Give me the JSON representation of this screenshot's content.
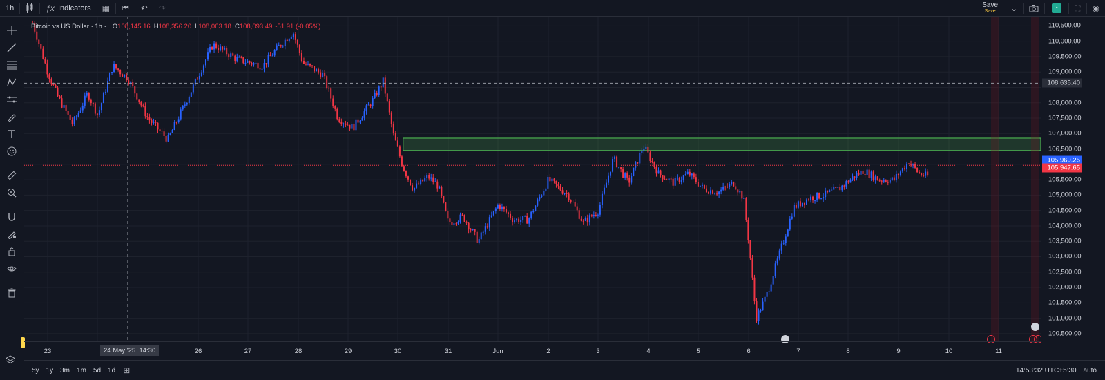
{
  "toolbar": {
    "interval": "1h",
    "indicators_label": "Indicators",
    "save_label": "Save",
    "save_sub": "Save"
  },
  "legend": {
    "symbol": "Bitcoin vs US Dollar · 1h ·",
    "open_label": "O",
    "open": "108,145.16",
    "high_label": "H",
    "high": "108,356.20",
    "low_label": "L",
    "low": "108,063.18",
    "close_label": "C",
    "close": "108,093.49",
    "change": "-51.91 (-0.05%)"
  },
  "price_axis": {
    "ticks": [
      "110,500.00",
      "110,000.00",
      "109,500.00",
      "109,000.00",
      "108,000.00",
      "107,500.00",
      "107,000.00",
      "106,500.00",
      "105,500.00",
      "105,000.00",
      "104,500.00",
      "104,000.00",
      "103,500.00",
      "103,000.00",
      "102,500.00",
      "102,000.00",
      "101,500.00",
      "101,000.00",
      "100,500.00"
    ],
    "crosshair_price": "108,635.40",
    "last_price": "105,969.25",
    "prev_close": "105,947.65"
  },
  "time_axis": {
    "ticks": [
      "23",
      "24",
      "26",
      "27",
      "28",
      "29",
      "30",
      "31",
      "Jun",
      "2",
      "3",
      "4",
      "5",
      "6",
      "7",
      "8",
      "9",
      "10",
      "11"
    ],
    "crosshair_date": "24 May '25",
    "crosshair_time": "14:30"
  },
  "bottom": {
    "ranges": [
      "5y",
      "1y",
      "3m",
      "1m",
      "5d",
      "1d"
    ],
    "clock": "14:53:32 UTC+5:30",
    "scale_mode": "auto"
  },
  "colors": {
    "background": "#131722",
    "up": "#2962ff",
    "down": "#f23645",
    "zone": "#4caf50",
    "grid": "#1e222d"
  },
  "chart_data": {
    "type": "candlestick",
    "symbol": "BTCUSD",
    "interval": "1h",
    "ylim": [
      100250,
      110800
    ],
    "x_labels": [
      "23",
      "24",
      "26",
      "27",
      "28",
      "29",
      "30",
      "31",
      "Jun",
      "2",
      "3",
      "4",
      "5",
      "6",
      "7",
      "8",
      "9",
      "10",
      "11"
    ],
    "zone": {
      "from": 106450,
      "to": 106850
    },
    "close_path": [
      {
        "day": 22.7,
        "price": 110600
      },
      {
        "day": 23.0,
        "price": 109000
      },
      {
        "day": 23.2,
        "price": 108200
      },
      {
        "day": 23.5,
        "price": 107300
      },
      {
        "day": 23.8,
        "price": 108300
      },
      {
        "day": 24.0,
        "price": 107600
      },
      {
        "day": 24.3,
        "price": 109200
      },
      {
        "day": 24.6,
        "price": 108800
      },
      {
        "day": 25.0,
        "price": 107500
      },
      {
        "day": 25.4,
        "price": 106800
      },
      {
        "day": 25.9,
        "price": 108500
      },
      {
        "day": 26.3,
        "price": 109900
      },
      {
        "day": 26.8,
        "price": 109400
      },
      {
        "day": 27.3,
        "price": 109200
      },
      {
        "day": 27.6,
        "price": 109800
      },
      {
        "day": 27.9,
        "price": 110300
      },
      {
        "day": 28.1,
        "price": 109300
      },
      {
        "day": 28.5,
        "price": 108900
      },
      {
        "day": 28.8,
        "price": 107500
      },
      {
        "day": 29.1,
        "price": 107200
      },
      {
        "day": 29.5,
        "price": 108100
      },
      {
        "day": 29.7,
        "price": 108700
      },
      {
        "day": 29.9,
        "price": 107000
      },
      {
        "day": 30.1,
        "price": 105900
      },
      {
        "day": 30.3,
        "price": 105200
      },
      {
        "day": 30.6,
        "price": 105600
      },
      {
        "day": 30.8,
        "price": 105300
      },
      {
        "day": 31.0,
        "price": 104100
      },
      {
        "day": 31.3,
        "price": 104300
      },
      {
        "day": 31.6,
        "price": 103500
      },
      {
        "day": 32.0,
        "price": 104700
      },
      {
        "day": 32.3,
        "price": 104200
      },
      {
        "day": 32.6,
        "price": 104200
      },
      {
        "day": 33.0,
        "price": 105500
      },
      {
        "day": 33.4,
        "price": 105000
      },
      {
        "day": 33.7,
        "price": 104100
      },
      {
        "day": 34.0,
        "price": 104500
      },
      {
        "day": 34.3,
        "price": 106200
      },
      {
        "day": 34.6,
        "price": 105400
      },
      {
        "day": 34.9,
        "price": 106600
      },
      {
        "day": 35.2,
        "price": 105700
      },
      {
        "day": 35.5,
        "price": 105400
      },
      {
        "day": 35.8,
        "price": 105700
      },
      {
        "day": 36.1,
        "price": 105200
      },
      {
        "day": 36.4,
        "price": 105100
      },
      {
        "day": 36.7,
        "price": 105400
      },
      {
        "day": 36.9,
        "price": 104900
      },
      {
        "day": 37.0,
        "price": 103500
      },
      {
        "day": 37.15,
        "price": 101000
      },
      {
        "day": 37.35,
        "price": 101700
      },
      {
        "day": 37.6,
        "price": 103000
      },
      {
        "day": 37.9,
        "price": 104600
      },
      {
        "day": 38.2,
        "price": 104900
      },
      {
        "day": 38.5,
        "price": 105000
      },
      {
        "day": 38.8,
        "price": 105200
      },
      {
        "day": 39.1,
        "price": 105600
      },
      {
        "day": 39.3,
        "price": 105800
      },
      {
        "day": 39.6,
        "price": 105500
      },
      {
        "day": 39.9,
        "price": 105500
      },
      {
        "day": 40.2,
        "price": 106100
      },
      {
        "day": 40.4,
        "price": 105700
      },
      {
        "day": 40.6,
        "price": 105600
      }
    ]
  }
}
